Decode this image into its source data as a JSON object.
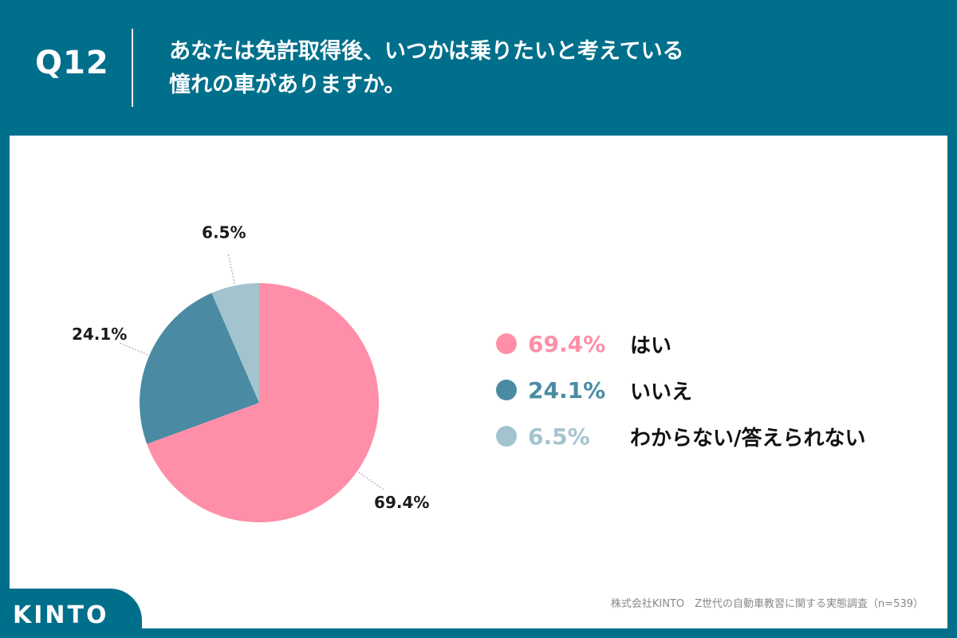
{
  "header": {
    "qnum": "Q12",
    "title_line1": "あなたは免許取得後、いつかは乗りたいと考えている",
    "title_line2": "憧れの車がありますか。"
  },
  "chart_data": {
    "type": "pie",
    "categories": [
      "はい",
      "いいえ",
      "わからない/答えられない"
    ],
    "values": [
      69.4,
      24.1,
      6.5
    ],
    "value_labels": [
      "69.4%",
      "24.1%",
      "6.5%"
    ],
    "colors": [
      "#ff8fa8",
      "#4a8ba3",
      "#a3c4cf"
    ],
    "start": "12 o'clock, clockwise",
    "legend_position": "right"
  },
  "source": "株式会社KINTO　Z世代の自動車教習に関する実態調査（n=539）",
  "logo": {
    "text": "KINTO"
  }
}
